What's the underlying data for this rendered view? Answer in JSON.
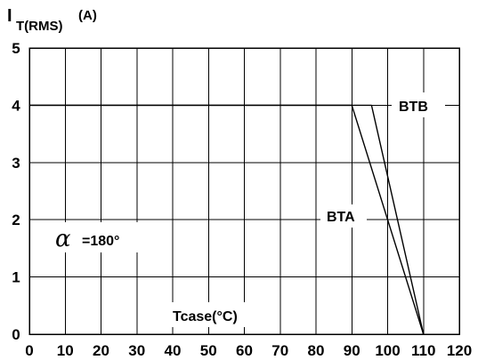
{
  "chart_data": {
    "type": "line",
    "ylabel_main": "I",
    "ylabel_sub": "T(RMS)",
    "ylabel_unit": "(A)",
    "xlabel": "Tcase(°C)",
    "xlim": [
      0,
      120
    ],
    "ylim": [
      0,
      5
    ],
    "x_ticks": [
      0,
      10,
      20,
      30,
      40,
      50,
      60,
      70,
      80,
      90,
      100,
      110,
      120
    ],
    "y_ticks": [
      0,
      1,
      2,
      3,
      4,
      5
    ],
    "grid": true,
    "series": [
      {
        "name": "BTB",
        "x": [
          0,
          95.5,
          110
        ],
        "y": [
          4,
          4,
          0
        ]
      },
      {
        "name": "BTA",
        "x": [
          0,
          90,
          110
        ],
        "y": [
          4,
          4,
          0
        ]
      }
    ],
    "annotations": {
      "alpha_symbol": "α",
      "alpha_value": "=180°"
    }
  }
}
